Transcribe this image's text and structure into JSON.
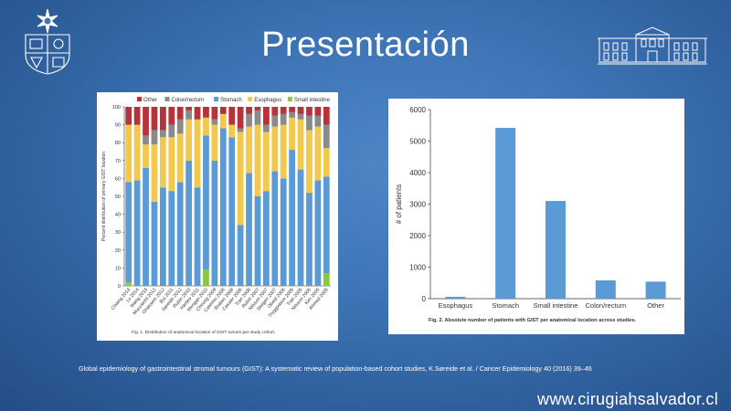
{
  "slide": {
    "title": "Presentación",
    "citation": "Global epidemiology of gastrointestinal stromal tumours (GIST): A systematic review of population-based cohort studies, K.Søreide et al. / Cancer Epidemiology 40 (2016) 39–46",
    "website": "www.cirugiahsalvador.cl",
    "background_color": "#3f76b8"
  },
  "chart_data": [
    {
      "type": "bar",
      "stacked": true,
      "caption": "Fig. 1. Distribution of anatomical location of GIST tumors per study cohort.",
      "ylabel": "Percent distribution of primary GIST location",
      "ylim": [
        0,
        100
      ],
      "yticks": [
        0,
        10,
        20,
        30,
        40,
        50,
        60,
        70,
        80,
        90,
        100
      ],
      "legend": [
        "Other",
        "Colon/rectum",
        "Stomach",
        "Esophagus",
        "Small intestine"
      ],
      "legend_placement": "top",
      "categories": [
        "Chiang 2014",
        "Lv 2014",
        "Wang 2014",
        "Mucciarini 2012",
        "Ghassem 2012",
        "Bui 2011",
        "Søreide 2012",
        "Rubin 2010",
        "Hartlev 2011",
        "Mengan 2010",
        "Cheung 2009",
        "Caterino 2008",
        "Brabec 2008",
        "Cassier 2008",
        "Tran 2008",
        "Rubió 2007",
        "Nilsson 2007",
        "Steigen 2007",
        "Obeid 2006",
        "Tryggvason 2005",
        "Tran 2005",
        "Nilsson 2005",
        "Kim 2005",
        "Ahmed 2005"
      ],
      "colors": {
        "Other": "#b8323c",
        "Colon/rectum": "#8a8a8a",
        "Stomach": "#5b9bd5",
        "Esophagus": "#f2c94c",
        "Small intestine": "#8dc63f"
      },
      "series": [
        {
          "name": "Small intestine",
          "values": [
            2,
            0,
            0,
            0,
            0,
            0,
            0,
            0,
            0,
            9,
            0,
            0,
            0,
            0,
            0,
            0,
            0,
            0,
            0,
            0,
            0,
            0,
            0,
            7
          ]
        },
        {
          "name": "Stomach",
          "values": [
            56,
            59,
            66,
            47,
            55,
            53,
            58,
            70,
            55,
            75,
            70,
            88,
            83,
            34,
            63,
            50,
            53,
            64,
            60,
            76,
            65,
            52,
            59,
            54
          ]
        },
        {
          "name": "Esophagus",
          "values": [
            32,
            31,
            13,
            32,
            28,
            30,
            27,
            23,
            38,
            10,
            20,
            8,
            7,
            52,
            26,
            40,
            33,
            25,
            30,
            18,
            28,
            35,
            30,
            16
          ]
        },
        {
          "name": "Colon/rectum",
          "values": [
            0,
            0,
            5,
            8,
            4,
            7,
            8,
            5,
            0,
            0,
            3,
            0,
            0,
            2,
            7,
            8,
            4,
            6,
            6,
            3,
            3,
            8,
            6,
            13
          ]
        },
        {
          "name": "Other",
          "values": [
            10,
            10,
            16,
            13,
            13,
            10,
            7,
            2,
            7,
            6,
            7,
            4,
            10,
            12,
            4,
            2,
            10,
            5,
            4,
            3,
            4,
            5,
            5,
            10
          ]
        }
      ]
    },
    {
      "type": "bar",
      "caption": "Fig. 2. Absolute number of patients with GIST per anatomical location across studies.",
      "xlabel": "",
      "ylabel": "# of patients",
      "ylim": [
        0,
        6000
      ],
      "yticks": [
        0,
        1000,
        2000,
        3000,
        4000,
        5000,
        6000
      ],
      "categories": [
        "Esophagus",
        "Stomach",
        "Small intestine",
        "Colon/rectum",
        "Other"
      ],
      "values": [
        60,
        5420,
        3100,
        580,
        540
      ],
      "bar_color": "#5b9bd5"
    }
  ]
}
